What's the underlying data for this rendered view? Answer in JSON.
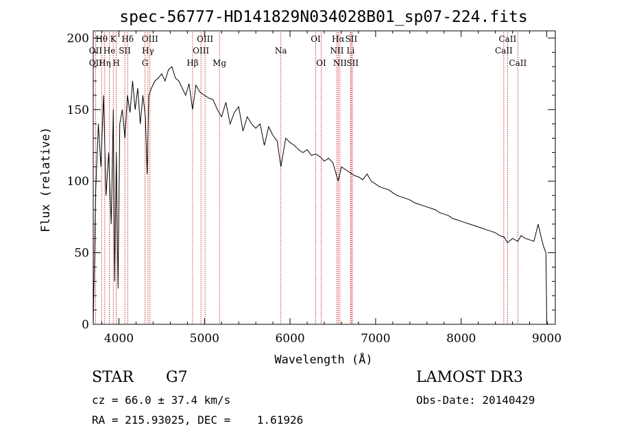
{
  "chart_data": {
    "type": "line",
    "title": "spec-56777-HD141829N034028B01_sp07-224.fits",
    "xlabel": "Wavelength (Å)",
    "ylabel": "Flux (relative)",
    "xlim": [
      3700,
      9100
    ],
    "ylim": [
      0,
      205
    ],
    "xticks": [
      4000,
      5000,
      6000,
      7000,
      8000,
      9000
    ],
    "yticks": [
      0,
      50,
      100,
      150,
      200
    ],
    "grid": false,
    "series": [
      {
        "name": "flux",
        "x": [
          3700,
          3730,
          3760,
          3790,
          3820,
          3850,
          3880,
          3910,
          3935,
          3950,
          3970,
          3990,
          4010,
          4040,
          4070,
          4100,
          4130,
          4160,
          4190,
          4220,
          4250,
          4280,
          4310,
          4330,
          4350,
          4380,
          4420,
          4460,
          4500,
          4540,
          4580,
          4620,
          4660,
          4700,
          4740,
          4780,
          4820,
          4861,
          4900,
          4950,
          5000,
          5050,
          5100,
          5150,
          5200,
          5250,
          5300,
          5350,
          5400,
          5450,
          5500,
          5550,
          5600,
          5650,
          5700,
          5750,
          5800,
          5850,
          5893,
          5950,
          6000,
          6050,
          6100,
          6150,
          6200,
          6250,
          6300,
          6350,
          6400,
          6450,
          6500,
          6563,
          6600,
          6650,
          6700,
          6750,
          6800,
          6850,
          6900,
          6950,
          7000,
          7050,
          7100,
          7150,
          7200,
          7250,
          7300,
          7350,
          7400,
          7450,
          7500,
          7550,
          7600,
          7650,
          7700,
          7750,
          7800,
          7850,
          7900,
          7950,
          8000,
          8050,
          8100,
          8150,
          8200,
          8250,
          8300,
          8350,
          8400,
          8450,
          8500,
          8542,
          8600,
          8662,
          8700,
          8750,
          8800,
          8850,
          8880,
          8900,
          8930,
          8960,
          8990,
          9000,
          9010
        ],
        "values": [
          0,
          95,
          140,
          110,
          160,
          90,
          120,
          70,
          150,
          30,
          120,
          25,
          140,
          150,
          130,
          160,
          148,
          170,
          150,
          165,
          140,
          160,
          145,
          105,
          160,
          165,
          170,
          172,
          175,
          170,
          178,
          180,
          172,
          170,
          165,
          160,
          168,
          150,
          167,
          162,
          160,
          158,
          157,
          150,
          145,
          155,
          140,
          148,
          152,
          135,
          145,
          140,
          137,
          140,
          125,
          138,
          132,
          128,
          110,
          130,
          127,
          125,
          122,
          120,
          122,
          118,
          119,
          117,
          114,
          116,
          113,
          100,
          110,
          108,
          106,
          104,
          103,
          101,
          105,
          100,
          98,
          96,
          95,
          94,
          92,
          90,
          89,
          88,
          87,
          85,
          84,
          83,
          82,
          81,
          80,
          78,
          77,
          76,
          74,
          73,
          72,
          71,
          70,
          69,
          68,
          67,
          66,
          65,
          64,
          62,
          61,
          57,
          60,
          58,
          62,
          60,
          59,
          58,
          65,
          70,
          62,
          55,
          50,
          3,
          0
        ]
      }
    ],
    "line_markers": [
      {
        "name": "OII",
        "x": 3727,
        "row": 2
      },
      {
        "name": "Hθ",
        "x": 3798,
        "row": 1
      },
      {
        "name": "OII",
        "x": 3727,
        "row": 3
      },
      {
        "name": "Hη",
        "x": 3835,
        "row": 3
      },
      {
        "name": "He",
        "x": 3889,
        "row": 2
      },
      {
        "name": "K",
        "x": 3934,
        "row": 1
      },
      {
        "name": "SII",
        "x": 4069,
        "row": 2
      },
      {
        "name": "H",
        "x": 3969,
        "row": 3
      },
      {
        "name": "Hδ",
        "x": 4102,
        "row": 1
      },
      {
        "name": "OIII",
        "x": 4363,
        "row": 1
      },
      {
        "name": "Hγ",
        "x": 4340,
        "row": 2
      },
      {
        "name": "G",
        "x": 4305,
        "row": 3
      },
      {
        "name": "Hβ",
        "x": 4861,
        "row": 3
      },
      {
        "name": "OIII",
        "x": 5007,
        "row": 1
      },
      {
        "name": "OIII",
        "x": 4959,
        "row": 2
      },
      {
        "name": "Mg",
        "x": 5175,
        "row": 3
      },
      {
        "name": "Na",
        "x": 5893,
        "row": 2
      },
      {
        "name": "OI",
        "x": 6300,
        "row": 1
      },
      {
        "name": "OI",
        "x": 6364,
        "row": 3
      },
      {
        "name": "Hα",
        "x": 6563,
        "row": 1
      },
      {
        "name": "NII",
        "x": 6548,
        "row": 2
      },
      {
        "name": "NII",
        "x": 6583,
        "row": 3
      },
      {
        "name": "SII",
        "x": 6716,
        "row": 1
      },
      {
        "name": "Li",
        "x": 6708,
        "row": 2
      },
      {
        "name": "SII",
        "x": 6731,
        "row": 3
      },
      {
        "name": "CaII",
        "x": 8542,
        "row": 1
      },
      {
        "name": "CaII",
        "x": 8498,
        "row": 2
      },
      {
        "name": "CaII",
        "x": 8662,
        "row": 3
      }
    ],
    "marker_color": "#c00000"
  },
  "info": {
    "class_label": "STAR",
    "subclass": "G7",
    "survey": "LAMOST DR3",
    "cz": "cz = 66.0 ± 37.4 km/s",
    "obs_date": "Obs-Date: 20140429",
    "coords": "RA = 215.93025, DEC =    1.61926"
  }
}
